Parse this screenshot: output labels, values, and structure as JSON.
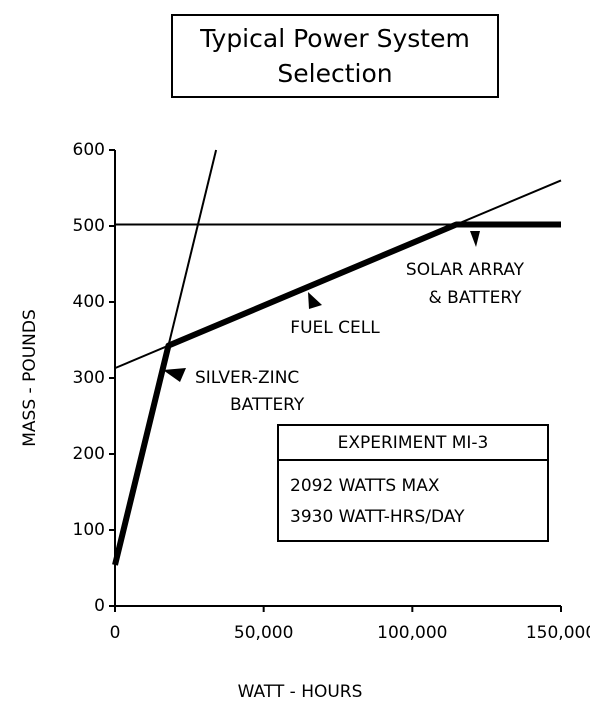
{
  "chart_data": {
    "type": "line",
    "title": [
      "Typical Power System",
      "Selection"
    ],
    "xlabel": "WATT - HOURS",
    "ylabel": "MASS - POUNDS",
    "xlim": [
      0,
      150000
    ],
    "ylim": [
      0,
      600
    ],
    "xticks": [
      0,
      {
        "value": 50000,
        "label": "50,000"
      },
      {
        "value": 100000,
        "label": "100,000"
      },
      {
        "value": 150000,
        "label": "150,000"
      }
    ],
    "yticks": [
      0,
      100,
      200,
      300,
      400,
      500,
      600
    ],
    "color": "#000000",
    "series": [
      {
        "label": [
          "SILVER-ZINC",
          "BATTERY"
        ],
        "x": [
          0,
          34000
        ],
        "values": [
          54,
          600
        ]
      },
      {
        "label": [
          "FUEL CELL"
        ],
        "x": [
          0,
          150000
        ],
        "values": [
          313,
          560
        ]
      },
      {
        "label": [
          "SOLAR ARRAY",
          "& BATTERY"
        ],
        "x": [
          0,
          150000
        ],
        "values": [
          502,
          502
        ]
      }
    ],
    "box": {
      "title": "EXPERIMENT MI-3",
      "lines": [
        "2092 WATTS MAX",
        "3930 WATT-HRS/DAY"
      ]
    }
  }
}
